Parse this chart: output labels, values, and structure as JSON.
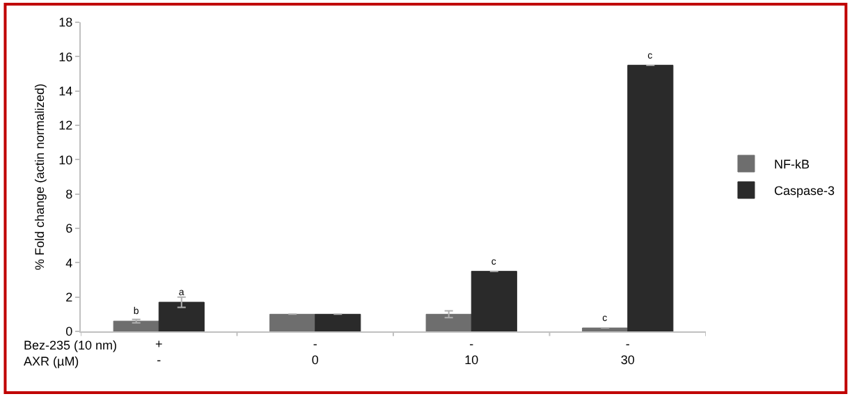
{
  "chart_data": {
    "type": "bar",
    "ylabel": "% Fold change (actin normalized)",
    "categories": [
      "+\n-",
      "-\n0",
      "-\n10",
      "-\n30"
    ],
    "series": [
      {
        "name": "NF-kB",
        "color": "#6e6e6e",
        "values": [
          0.6,
          1.0,
          1.0,
          0.2
        ],
        "errors": [
          0.1,
          null,
          0.2,
          null
        ],
        "value_labels": [
          "b",
          null,
          null,
          "c"
        ]
      },
      {
        "name": "Caspase-3",
        "color": "#2a2a2a",
        "values": [
          1.7,
          1.0,
          3.5,
          15.5
        ],
        "errors": [
          0.3,
          null,
          null,
          null
        ],
        "value_labels": [
          "a",
          null,
          "c",
          "c"
        ]
      }
    ],
    "annotations": [
      "Bez-235 (10 nm)\nAXR (µM)"
    ],
    "ylim": [
      0,
      18
    ],
    "yticks": [
      0,
      2,
      4,
      6,
      8,
      10,
      12,
      14,
      16,
      18
    ],
    "legend": "right"
  }
}
